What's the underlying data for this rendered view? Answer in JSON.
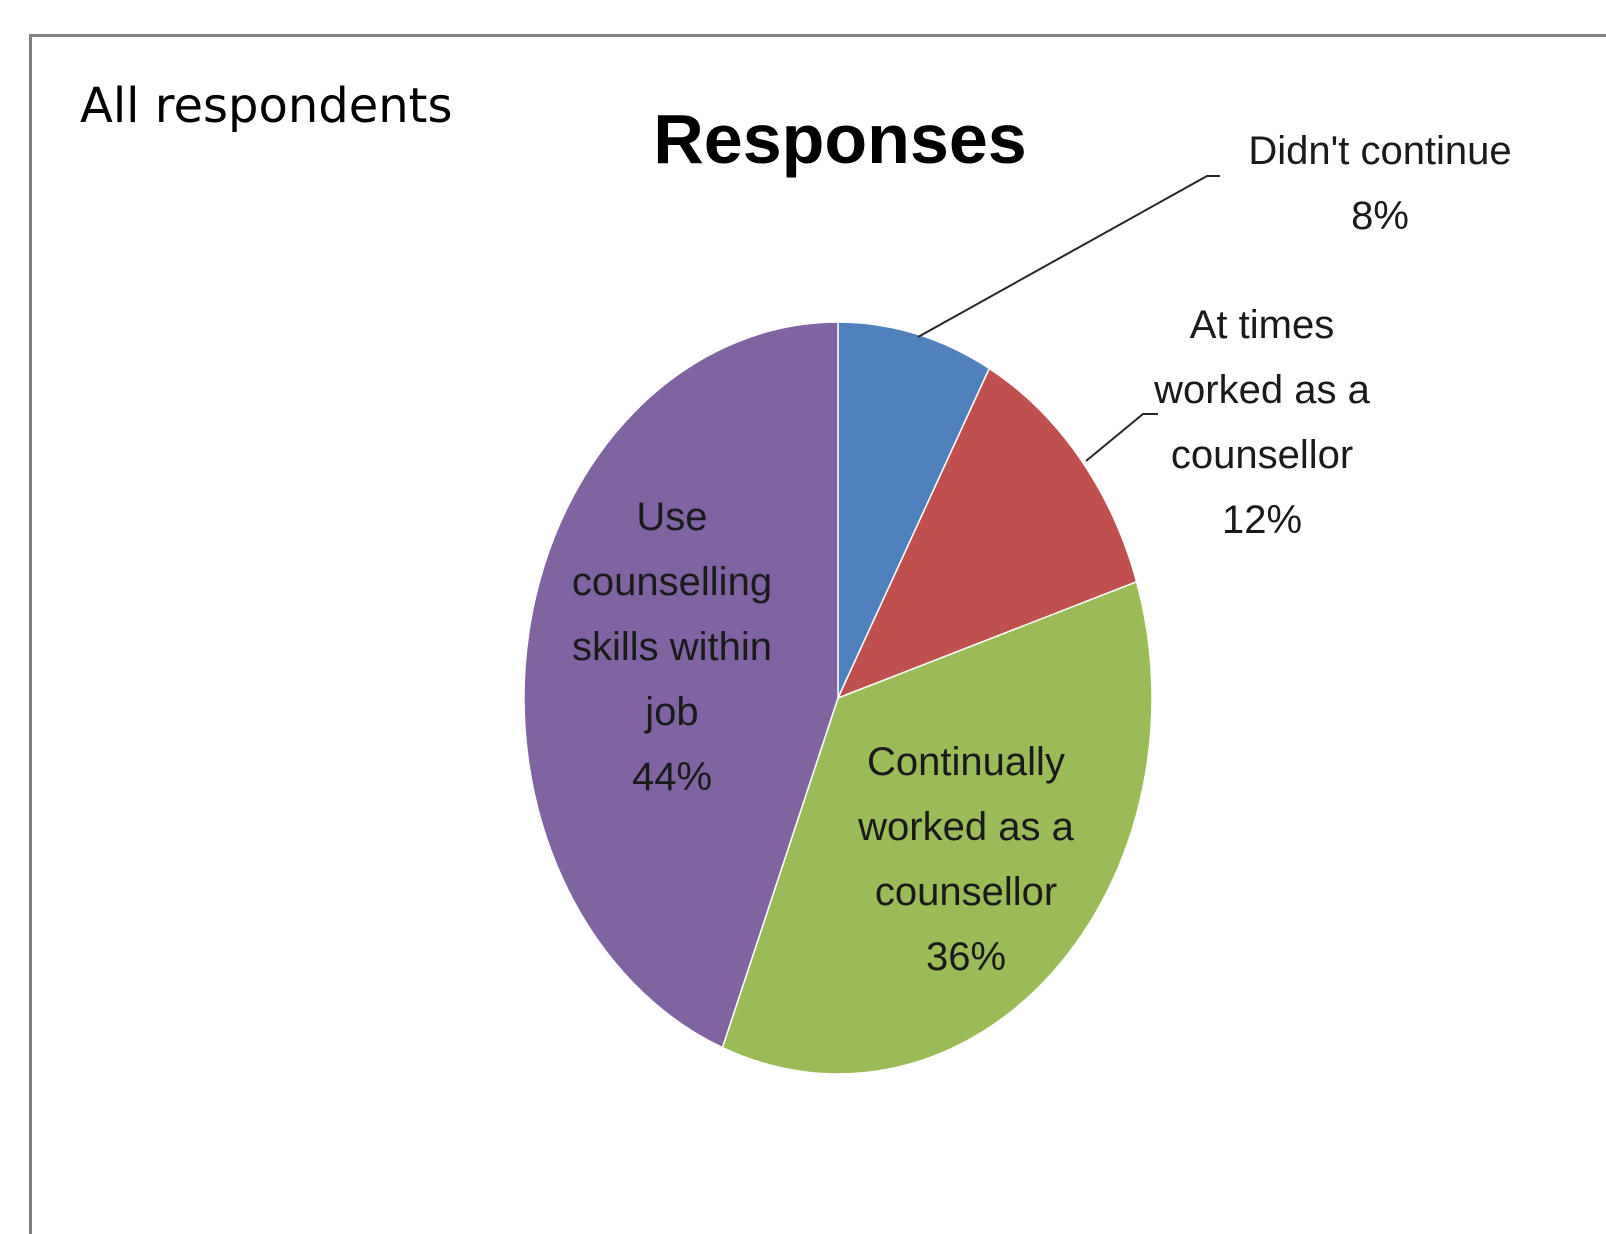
{
  "header": {
    "corner_label": "All respondents"
  },
  "chart_data": {
    "type": "pie",
    "title": "Responses",
    "slices": [
      {
        "label": "Didn't continue",
        "value": 8,
        "display": "8%",
        "color": "#4F81BD"
      },
      {
        "label": "At times worked as a counsellor",
        "value": 12,
        "display": "12%",
        "color": "#C0504D"
      },
      {
        "label": "Continually worked as a counsellor",
        "value": 36,
        "display": "36%",
        "color": "#9BBB59"
      },
      {
        "label": "Use counselling skills within job",
        "value": 44,
        "display": "44%",
        "color": "#8064A2"
      }
    ],
    "label_lines": [
      [
        "Didn't continue",
        "8%"
      ],
      [
        "At times",
        "worked as a",
        "counsellor",
        "12%"
      ],
      [
        "Continually",
        "worked as a",
        "counsellor",
        "36%"
      ],
      [
        "Use",
        "counselling",
        "skills within",
        "job",
        "44%"
      ]
    ]
  }
}
